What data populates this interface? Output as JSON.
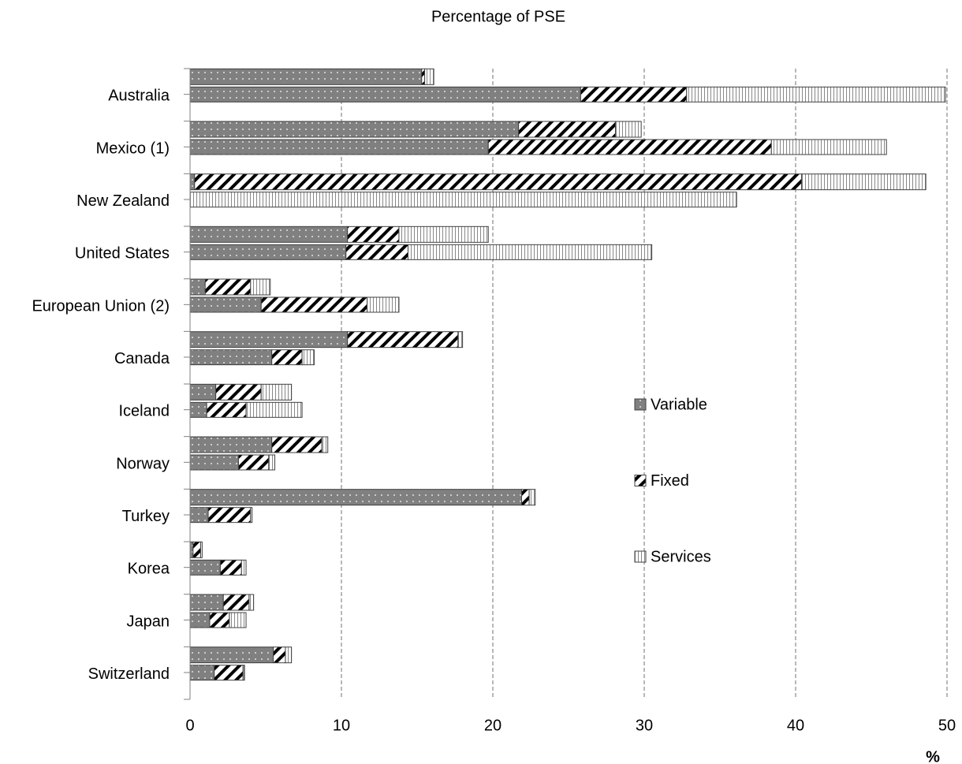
{
  "chart_data": {
    "type": "stacked-barh-pairs",
    "title": "Percentage of PSE",
    "xlabel": "%",
    "categories": [
      "Australia",
      "Mexico (1)",
      "New Zealand",
      "United States",
      "European Union  (2)",
      "Canada",
      "Iceland",
      "Norway",
      "Turkey",
      "Korea",
      "Japan",
      "Switzerland"
    ],
    "series": [
      {
        "name": "Variable",
        "color": "#808080",
        "pattern": "dots",
        "values": [
          [
            15.3,
            25.8
          ],
          [
            21.7,
            19.7
          ],
          [
            0.3,
            0
          ],
          [
            10.4,
            10.3
          ],
          [
            1.0,
            4.7
          ],
          [
            10.4,
            5.4
          ],
          [
            1.7,
            1.1
          ],
          [
            5.4,
            3.2
          ],
          [
            21.9,
            1.2
          ],
          [
            0.2,
            2.0
          ],
          [
            2.2,
            1.3
          ],
          [
            5.5,
            1.6
          ]
        ]
      },
      {
        "name": "Fixed",
        "color": "#ffffff",
        "pattern": "diagonal",
        "values": [
          [
            0.2,
            7.0
          ],
          [
            6.4,
            18.7
          ],
          [
            40.1,
            0
          ],
          [
            3.4,
            4.1
          ],
          [
            3.0,
            7.0
          ],
          [
            7.3,
            2.0
          ],
          [
            3.0,
            2.6
          ],
          [
            3.3,
            2.0
          ],
          [
            0.5,
            2.8
          ],
          [
            0.5,
            1.4
          ],
          [
            1.7,
            1.3
          ],
          [
            0.8,
            1.9
          ]
        ]
      },
      {
        "name": "Services",
        "color": "#ffffff",
        "pattern": "vertical",
        "values": [
          [
            0.6,
            17.1
          ],
          [
            1.7,
            7.6
          ],
          [
            8.2,
            36.1
          ],
          [
            5.9,
            16.1
          ],
          [
            1.3,
            2.1
          ],
          [
            0.3,
            0.8
          ],
          [
            2.0,
            3.7
          ],
          [
            0.4,
            0.4
          ],
          [
            0.4,
            0.1
          ],
          [
            0.1,
            0.3
          ],
          [
            0.3,
            1.1
          ],
          [
            0.4,
            0.1
          ]
        ]
      }
    ],
    "xlim": [
      0,
      50
    ],
    "xticks": [
      0,
      10,
      20,
      30,
      40,
      50
    ],
    "grid": true,
    "legend": "right"
  }
}
